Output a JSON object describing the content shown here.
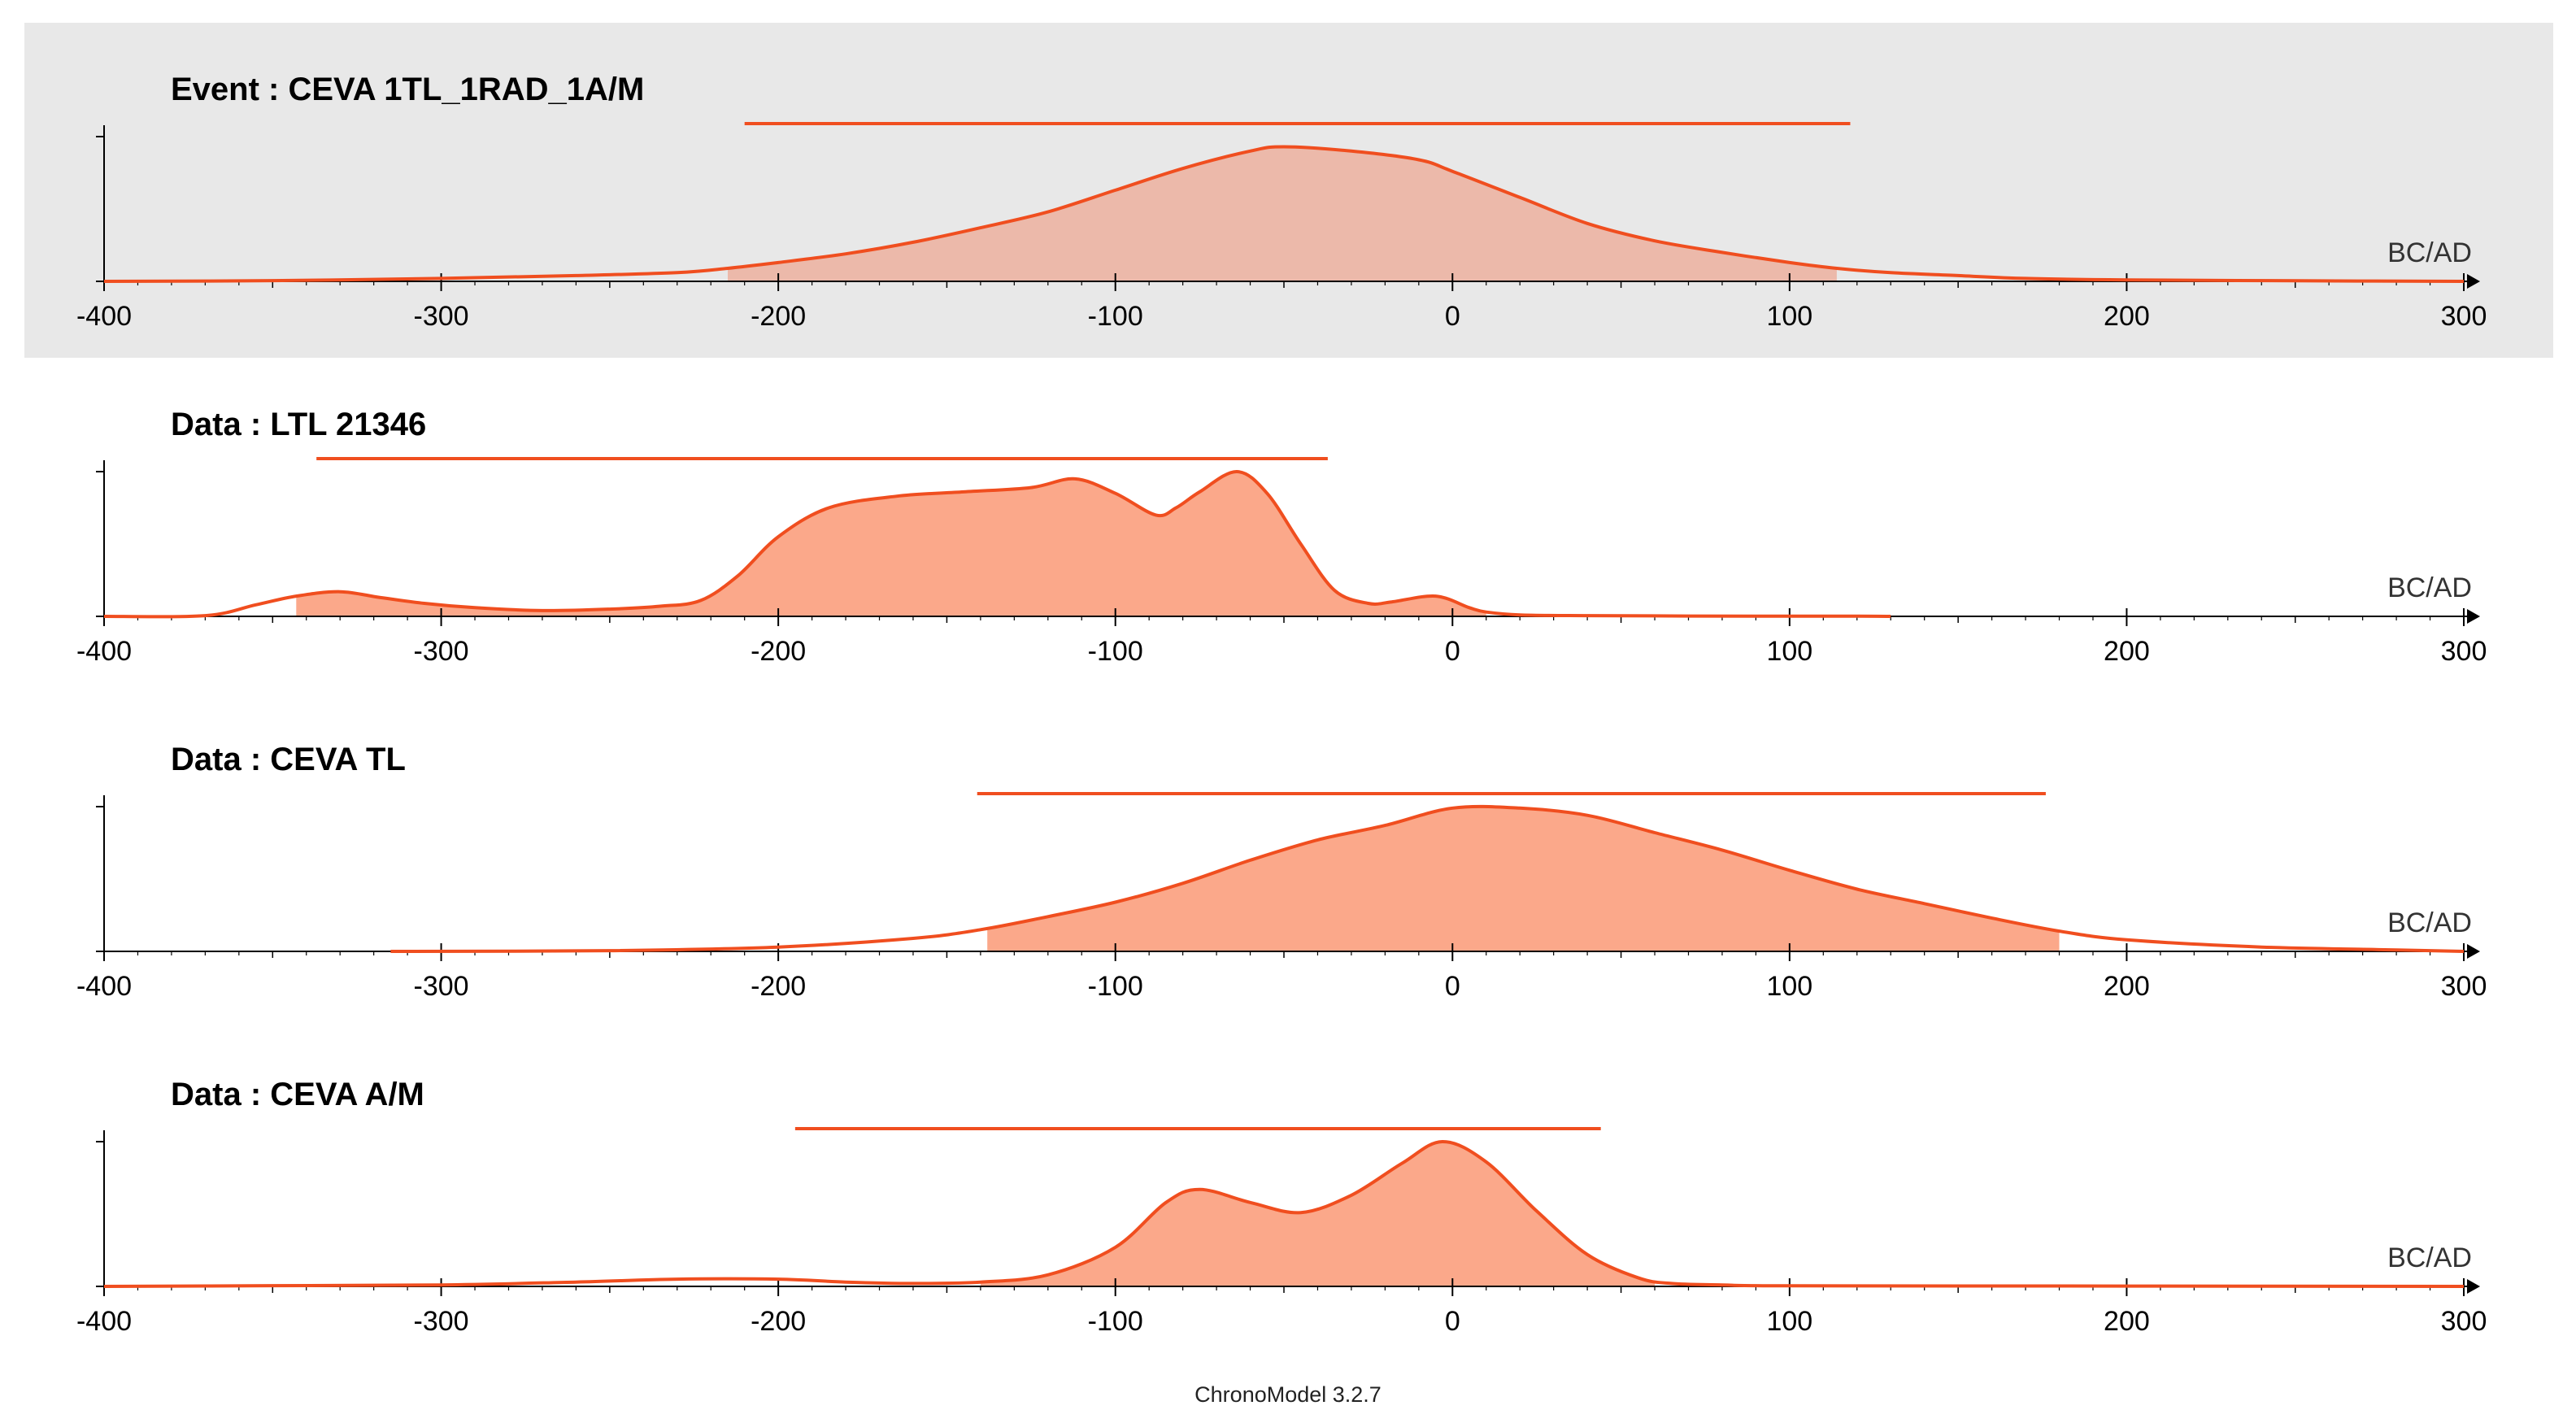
{
  "colors": {
    "curve": "#f04e1f",
    "fill_light": "#ecb9aa",
    "fill_strong": "#fba88a",
    "selected_panel_bg": "#e8e8e8",
    "axis": "#000000"
  },
  "footer": "ChronoModel 3.2.7",
  "chart_data": [
    {
      "type": "area",
      "title": "Event : CEVA 1TL_1RAD_1A/M",
      "selected": true,
      "fill_style": "light",
      "xlabel": "BC/AD",
      "xlim": [
        -400,
        300
      ],
      "ylim": [
        0,
        1
      ],
      "x_ticks": [
        -400,
        -300,
        -200,
        -100,
        0,
        100,
        200,
        300
      ],
      "x_tick_labels": [
        "-400",
        "-300",
        "-200",
        "-100",
        "0",
        "100",
        "200",
        "300"
      ],
      "hpd_bar": [
        -210,
        118
      ],
      "fill_range": [
        -215,
        114
      ],
      "x": [
        -400,
        -350,
        -300,
        -260,
        -230,
        -215,
        -200,
        -180,
        -160,
        -140,
        -120,
        -100,
        -80,
        -60,
        -50,
        -30,
        -10,
        0,
        20,
        40,
        60,
        80,
        100,
        114,
        130,
        150,
        170,
        200,
        250,
        300
      ],
      "y": [
        0,
        0.005,
        0.02,
        0.04,
        0.06,
        0.09,
        0.13,
        0.19,
        0.27,
        0.37,
        0.48,
        0.63,
        0.78,
        0.9,
        0.93,
        0.9,
        0.84,
        0.76,
        0.58,
        0.4,
        0.28,
        0.2,
        0.13,
        0.09,
        0.06,
        0.04,
        0.02,
        0.01,
        0.004,
        0
      ]
    },
    {
      "type": "area",
      "title": "Data : LTL 21346",
      "selected": false,
      "fill_style": "strong",
      "xlabel": "BC/AD",
      "xlim": [
        -400,
        300
      ],
      "ylim": [
        0,
        1
      ],
      "x_ticks": [
        -400,
        -300,
        -200,
        -100,
        0,
        100,
        200,
        300
      ],
      "x_tick_labels": [
        "-400",
        "-300",
        "-200",
        "-100",
        "0",
        "100",
        "200",
        "300"
      ],
      "hpd_bar": [
        -337,
        -37
      ],
      "fill_range": [
        -343,
        10
      ],
      "x": [
        -400,
        -370,
        -355,
        -343,
        -330,
        -318,
        -305,
        -290,
        -270,
        -250,
        -235,
        -223,
        -212,
        -200,
        -185,
        -165,
        -145,
        -125,
        -112,
        -100,
        -88,
        -82,
        -75,
        -64,
        -55,
        -45,
        -35,
        -25,
        -18,
        -5,
        5,
        10,
        20,
        40,
        70,
        120,
        130
      ],
      "y": [
        0,
        0.005,
        0.08,
        0.14,
        0.17,
        0.13,
        0.09,
        0.06,
        0.04,
        0.05,
        0.07,
        0.11,
        0.28,
        0.55,
        0.75,
        0.83,
        0.86,
        0.89,
        0.95,
        0.85,
        0.7,
        0.75,
        0.86,
        1.0,
        0.85,
        0.5,
        0.18,
        0.09,
        0.1,
        0.14,
        0.06,
        0.03,
        0.01,
        0.005,
        0.002,
        0.001,
        0
      ]
    },
    {
      "type": "area",
      "title": "Data : CEVA TL",
      "selected": false,
      "fill_style": "strong",
      "xlabel": "BC/AD",
      "xlim": [
        -400,
        300
      ],
      "ylim": [
        0,
        1
      ],
      "x_ticks": [
        -400,
        -300,
        -200,
        -100,
        0,
        100,
        200,
        300
      ],
      "x_tick_labels": [
        "-400",
        "-300",
        "-200",
        "-100",
        "0",
        "100",
        "200",
        "300"
      ],
      "hpd_bar": [
        -141,
        176
      ],
      "fill_range": [
        -138,
        180
      ],
      "x": [
        -315,
        -250,
        -200,
        -160,
        -140,
        -120,
        -100,
        -80,
        -60,
        -40,
        -20,
        0,
        20,
        40,
        60,
        80,
        100,
        120,
        140,
        160,
        180,
        200,
        240,
        280,
        300
      ],
      "y": [
        0,
        0.005,
        0.03,
        0.09,
        0.15,
        0.24,
        0.34,
        0.47,
        0.63,
        0.77,
        0.87,
        0.99,
        0.99,
        0.94,
        0.82,
        0.7,
        0.56,
        0.43,
        0.33,
        0.23,
        0.14,
        0.08,
        0.03,
        0.01,
        0
      ]
    },
    {
      "type": "area",
      "title": "Data : CEVA A/M",
      "selected": false,
      "fill_style": "strong",
      "xlabel": "BC/AD",
      "xlim": [
        -400,
        300
      ],
      "ylim": [
        0,
        1
      ],
      "x_ticks": [
        -400,
        -300,
        -200,
        -100,
        0,
        100,
        200,
        300
      ],
      "x_tick_labels": [
        "-400",
        "-300",
        "-200",
        "-100",
        "0",
        "100",
        "200",
        "300"
      ],
      "hpd_bar": [
        -195,
        44
      ],
      "fill_range": [
        -140,
        60
      ],
      "x": [
        -400,
        -350,
        -300,
        -260,
        -230,
        -200,
        -180,
        -160,
        -140,
        -120,
        -100,
        -85,
        -75,
        -60,
        -45,
        -30,
        -15,
        -3,
        10,
        25,
        40,
        55,
        65,
        80,
        100,
        200,
        300
      ],
      "y": [
        0,
        0.005,
        0.01,
        0.03,
        0.05,
        0.05,
        0.03,
        0.02,
        0.03,
        0.08,
        0.27,
        0.58,
        0.67,
        0.58,
        0.51,
        0.63,
        0.85,
        1.0,
        0.86,
        0.52,
        0.22,
        0.06,
        0.02,
        0.01,
        0.004,
        0.002,
        0
      ]
    }
  ]
}
